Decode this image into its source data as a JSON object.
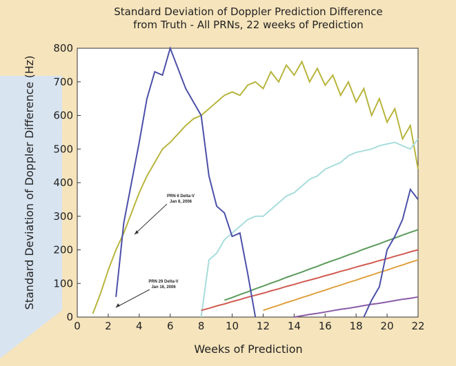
{
  "chart_data": {
    "type": "line",
    "title": [
      "Standard Deviation of Doppler Prediction Difference",
      "from Truth - All PRNs, 22 weeks of Prediction"
    ],
    "xlabel": "Weeks of Prediction",
    "ylabel": "Standard Deviation of Doppler Difference (Hz)",
    "annotations": [
      [
        "PRN 6 Delta-V",
        "Jan 8, 2006"
      ],
      [
        "PRN 29 Delta-V",
        "Jan 16, 2006"
      ]
    ],
    "xlim": [
      0,
      22
    ],
    "ylim": [
      0,
      800
    ],
    "xticks": [
      0,
      2,
      4,
      6,
      8,
      10,
      12,
      14,
      16,
      18,
      20,
      22
    ],
    "yticks": [
      0,
      100,
      200,
      300,
      400,
      500,
      600,
      700,
      800
    ],
    "grid": false,
    "x": [
      0,
      0.5,
      1,
      1.5,
      2,
      2.5,
      3,
      3.5,
      4,
      4.5,
      5,
      5.5,
      6,
      6.5,
      7,
      7.5,
      8,
      8.5,
      9,
      9.5,
      10,
      10.5,
      11,
      11.5,
      12,
      12.5,
      13,
      13.5,
      14,
      14.5,
      15,
      15.5,
      16,
      16.5,
      17,
      17.5,
      18,
      18.5,
      19,
      19.5,
      20,
      20.5,
      21,
      21.5,
      22
    ],
    "series": [
      {
        "color": "#b8b43c",
        "values": [
          null,
          null,
          10,
          70,
          140,
          200,
          250,
          310,
          370,
          420,
          460,
          500,
          520,
          545,
          570,
          590,
          600,
          620,
          640,
          660,
          670,
          660,
          690,
          700,
          680,
          730,
          700,
          750,
          720,
          760,
          700,
          740,
          690,
          720,
          660,
          700,
          640,
          680,
          600,
          650,
          580,
          620,
          530,
          570,
          440
        ]
      },
      {
        "color": "#a8dcdc",
        "values": [
          null,
          null,
          null,
          null,
          null,
          null,
          null,
          null,
          null,
          null,
          null,
          null,
          null,
          null,
          null,
          null,
          0,
          170,
          190,
          230,
          250,
          270,
          290,
          300,
          300,
          320,
          340,
          360,
          370,
          390,
          410,
          420,
          440,
          450,
          460,
          480,
          490,
          495,
          500,
          510,
          515,
          520,
          510,
          500,
          530
        ]
      },
      {
        "color": "#5a9a5a",
        "values": [
          null,
          null,
          null,
          null,
          null,
          null,
          null,
          null,
          null,
          null,
          null,
          null,
          null,
          null,
          null,
          null,
          null,
          null,
          null,
          50,
          58,
          67,
          75,
          84,
          92,
          101,
          109,
          118,
          126,
          134,
          143,
          151,
          160,
          168,
          176,
          185,
          193,
          202,
          210,
          218,
          227,
          235,
          244,
          252,
          260
        ]
      },
      {
        "color": "#d05a50",
        "values": [
          null,
          null,
          null,
          null,
          null,
          null,
          null,
          null,
          null,
          null,
          null,
          null,
          null,
          null,
          null,
          null,
          20,
          26,
          33,
          39,
          46,
          52,
          59,
          65,
          71,
          78,
          84,
          91,
          97,
          104,
          110,
          116,
          123,
          129,
          136,
          142,
          149,
          155,
          161,
          168,
          174,
          181,
          187,
          194,
          200
        ]
      },
      {
        "color": "#e0a040",
        "values": [
          null,
          null,
          null,
          null,
          null,
          null,
          null,
          null,
          null,
          null,
          null,
          null,
          null,
          null,
          null,
          null,
          null,
          null,
          null,
          null,
          null,
          null,
          null,
          null,
          20,
          28,
          35,
          43,
          50,
          58,
          65,
          73,
          80,
          88,
          95,
          103,
          110,
          118,
          125,
          133,
          140,
          148,
          155,
          163,
          170
        ]
      },
      {
        "color": "#8a5aa8",
        "values": [
          null,
          null,
          null,
          null,
          null,
          null,
          null,
          null,
          null,
          null,
          null,
          null,
          null,
          null,
          null,
          null,
          null,
          null,
          null,
          null,
          null,
          null,
          null,
          null,
          null,
          null,
          null,
          null,
          0,
          4,
          8,
          11,
          15,
          19,
          23,
          26,
          30,
          34,
          38,
          41,
          45,
          49,
          53,
          56,
          60
        ]
      },
      {
        "color": "#4a4fa8",
        "values": [
          null,
          null,
          null,
          null,
          null,
          60,
          280,
          400,
          520,
          650,
          730,
          720,
          800,
          740,
          680,
          640,
          600,
          420,
          330,
          310,
          240,
          250,
          130,
          0,
          null,
          null,
          null,
          null,
          null,
          null,
          null,
          null,
          null,
          null,
          null,
          null,
          null,
          null,
          null,
          null,
          null,
          null,
          null,
          null,
          null
        ]
      },
      {
        "color": "#4a4fa8",
        "values": [
          null,
          null,
          null,
          null,
          null,
          null,
          null,
          null,
          null,
          null,
          null,
          null,
          null,
          null,
          null,
          null,
          null,
          null,
          null,
          null,
          null,
          null,
          null,
          null,
          null,
          null,
          null,
          null,
          null,
          null,
          null,
          null,
          null,
          null,
          null,
          null,
          null,
          0,
          50,
          90,
          200,
          240,
          290,
          380,
          350
        ]
      }
    ]
  }
}
